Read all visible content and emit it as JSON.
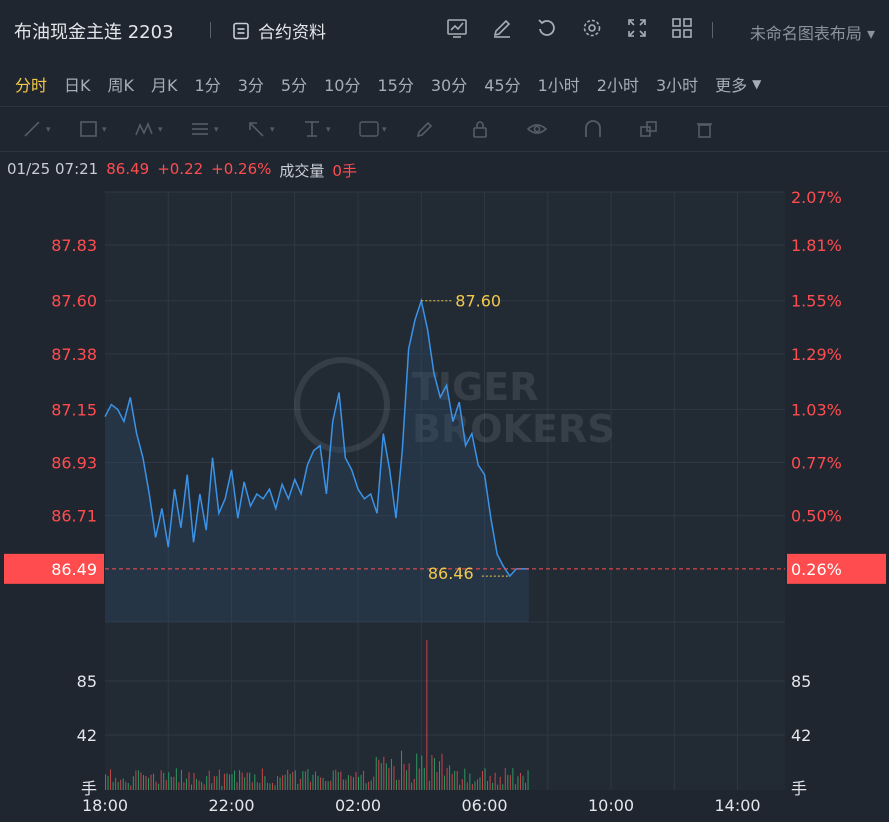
{
  "header": {
    "title": "布油现金主连 2203",
    "contract_info": "合约资料",
    "layout_name": "未命名图表布局"
  },
  "periods": [
    "分时",
    "日K",
    "周K",
    "月K",
    "1分",
    "3分",
    "5分",
    "10分",
    "15分",
    "30分",
    "45分",
    "1小时",
    "2小时",
    "3小时",
    "更多"
  ],
  "active_period": "分时",
  "quote": {
    "time": "01/25 07:21",
    "price": "86.49",
    "change": "+0.22",
    "change_pct": "+0.26%",
    "volume_label": "成交量",
    "volume": "0手"
  },
  "colors": {
    "line": "#3b93e8",
    "up": "#ff4d4f",
    "down": "#2fbf71",
    "accent": "#f2c94c",
    "bg": "#1f2630"
  },
  "watermark": [
    "TIGER",
    "BROKERS"
  ],
  "chart_data": {
    "type": "line",
    "price_ticks": [
      "87.83",
      "87.60",
      "87.38",
      "87.15",
      "86.93",
      "86.71"
    ],
    "pct_ticks": [
      "2.07%",
      "1.81%",
      "1.55%",
      "1.29%",
      "1.03%",
      "0.77%",
      "0.50%"
    ],
    "current_price": "86.49",
    "current_pct": "0.26%",
    "high_label": "87.60",
    "low_label": "86.46",
    "volume_ticks": [
      "85",
      "42",
      "手"
    ],
    "x_ticks": [
      "18:00",
      "22:00",
      "02:00",
      "06:00",
      "10:00",
      "14:00"
    ],
    "ylim": [
      86.27,
      88.05
    ],
    "series": [
      {
        "x": [
          18.0,
          18.2,
          18.4,
          18.6,
          18.8,
          19.0,
          19.2,
          19.4,
          19.6,
          19.8,
          20.0,
          20.2,
          20.4,
          20.6,
          20.8,
          21.0,
          21.2,
          21.4,
          21.6,
          21.8,
          22.0,
          22.2,
          22.4,
          22.6,
          22.8,
          23.0,
          23.2,
          23.4,
          23.6,
          23.8,
          24.0,
          24.2,
          24.4,
          24.6,
          24.8,
          25.0,
          25.2,
          25.4,
          25.6,
          25.8,
          26.0,
          26.2,
          26.4,
          26.6,
          26.8,
          27.0,
          27.2,
          27.4,
          27.6,
          27.8,
          28.0,
          28.2,
          28.4,
          28.6,
          28.8,
          29.0,
          29.2,
          29.4,
          29.6,
          29.8,
          30.0,
          30.2,
          30.4,
          30.6,
          30.8,
          31.0,
          31.2,
          31.4
        ],
        "values": [
          87.12,
          87.17,
          87.15,
          87.1,
          87.2,
          87.05,
          86.95,
          86.8,
          86.62,
          86.74,
          86.58,
          86.82,
          86.66,
          86.88,
          86.6,
          86.8,
          86.65,
          86.95,
          86.72,
          86.78,
          86.9,
          86.7,
          86.85,
          86.75,
          86.8,
          86.78,
          86.82,
          86.74,
          86.84,
          86.78,
          86.86,
          86.8,
          86.92,
          86.98,
          87.0,
          86.8,
          87.1,
          87.22,
          86.95,
          86.9,
          86.82,
          86.78,
          86.8,
          86.72,
          87.05,
          86.9,
          86.7,
          86.98,
          87.4,
          87.52,
          87.6,
          87.48,
          87.3,
          87.2,
          87.25,
          87.1,
          87.18,
          87.0,
          87.05,
          86.92,
          86.88,
          86.7,
          86.55,
          86.5,
          86.46,
          86.49,
          86.49,
          86.49
        ]
      }
    ]
  }
}
